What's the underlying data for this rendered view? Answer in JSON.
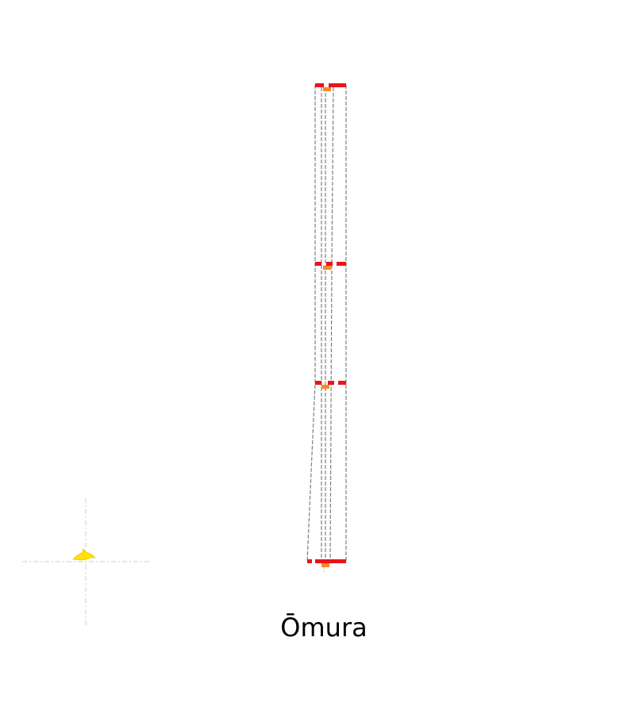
{
  "caption": "Ōmura",
  "colors": {
    "background": "#ffffff",
    "frame": "#808080",
    "level_bar": "#e8151b",
    "node": "#f28c28",
    "marker": "#ffe200",
    "guide": "#cccccc"
  },
  "diagram": {
    "levels": 4,
    "columns": 3,
    "marker": "yellow-blob-icon"
  }
}
